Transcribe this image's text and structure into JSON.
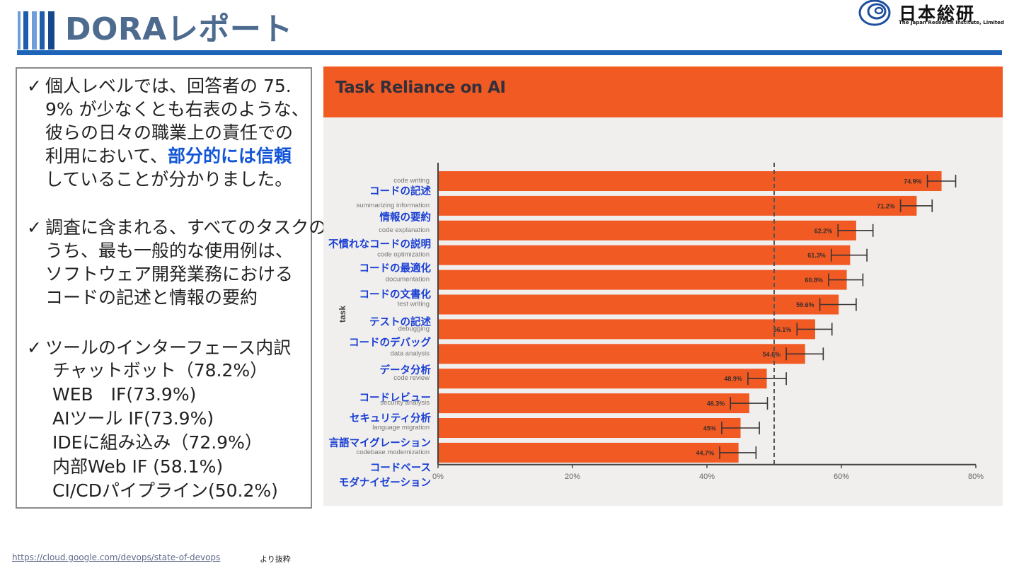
{
  "header": {
    "title": "DORAレポート"
  },
  "logo": {
    "name": "日本総研",
    "subtitle": "The Japan Research Institute, Limited"
  },
  "notes": {
    "check_icon": "✓",
    "b1_lines": [
      "個人レベルでは、回答者の 75.",
      "9% が少なくとも右表のような、",
      "彼らの日々の職業上の責任での"
    ],
    "b1_line4_pre": "利用において、",
    "b1_line4_hl": "部分的には信頼",
    "b1_line5": "していることが分かりました。",
    "b2_lines": [
      "調査に含まれる、すべてのタスクの",
      "うち、最も一般的な使用例は、",
      "ソフトウェア開発業務における",
      "コードの記述と情報の要約"
    ],
    "b3_title": "ツールのインターフェース内訳",
    "b3_items": [
      "チャットボット（78.2%）",
      "WEB　IF(73.9%)",
      "AIツール IF(73.9%)",
      "IDEに組み込み（72.9%）",
      "内部Web IF (58.1%)",
      "CI/CDパイプライン(50.2%)"
    ]
  },
  "chart_data": {
    "type": "bar",
    "orientation": "horizontal",
    "title": "Task Reliance on AI",
    "ylabel": "task",
    "categories": [
      "code writing",
      "summarizing information",
      "code explanation",
      "code optimization",
      "documentation",
      "test writing",
      "debugging",
      "data analysis",
      "code review",
      "security analysis",
      "language migration",
      "codebase modernization"
    ],
    "values": [
      74.9,
      71.2,
      62.2,
      61.3,
      60.8,
      59.6,
      56.1,
      54.6,
      48.9,
      46.3,
      45,
      44.7
    ],
    "value_labels": [
      "74.9%",
      "71.2%",
      "62.2%",
      "61.3%",
      "60.8%",
      "59.6%",
      "56.1%",
      "54.6%",
      "48.9%",
      "46.3%",
      "45%",
      "44.7%"
    ],
    "error_low": [
      72.8,
      68.8,
      59.5,
      58.5,
      58.1,
      56.8,
      53.4,
      51.8,
      46.1,
      43.5,
      42.2,
      41.9
    ],
    "error_high": [
      77.0,
      73.5,
      64.7,
      63.8,
      63.2,
      62.2,
      58.6,
      57.3,
      51.8,
      49.0,
      47.8,
      47.3
    ],
    "japanese_labels": [
      "コードの記述",
      "情報の要約",
      "不慣れなコードの説明",
      "コードの最適化",
      "コードの文書化",
      "テストの記述",
      "コードのデバッグ",
      "データ分析",
      "コードレビュー",
      "セキュリティ分析",
      "言語マイグレーション",
      "コードベース",
      "モダナイゼーション"
    ],
    "xlim": [
      0,
      80
    ],
    "x_ticks": [
      "0%",
      "20%",
      "40%",
      "60%",
      "80%"
    ],
    "reference_line": 50,
    "grid": false,
    "bar_color": "#f25a24",
    "annotation_color": "#1a3fd4"
  },
  "footer": {
    "link": "https://cloud.google.com/devops/state-of-devops",
    "note": "より抜粋"
  }
}
